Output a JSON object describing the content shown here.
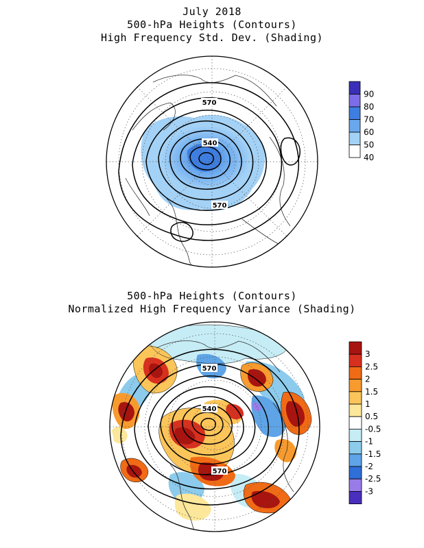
{
  "top_panel": {
    "title_lines": [
      "July 2018",
      "500-hPa Heights (Contours)",
      "High Frequency Std. Dev. (Shading)"
    ],
    "contour_labels": [
      "570",
      "540",
      "570"
    ],
    "legend": {
      "levels": [
        "90",
        "80",
        "70",
        "60",
        "50",
        "40"
      ],
      "colors": [
        "#3a2fb8",
        "#7d6de8",
        "#3e7ee0",
        "#6aa8ee",
        "#a4d2f6",
        "#ffffff"
      ]
    }
  },
  "bottom_panel": {
    "title_lines": [
      "500-hPa Heights (Contours)",
      "Normalized High Frequency Variance (Shading)"
    ],
    "contour_labels": [
      "570",
      "540",
      "570"
    ],
    "legend": {
      "levels": [
        "3",
        "2.5",
        "2",
        "1.5",
        "1",
        "0.5",
        "-0.5",
        "-1",
        "-1.5",
        "-2",
        "-2.5",
        "-3"
      ],
      "colors": [
        "#a8140f",
        "#d7301f",
        "#f06b15",
        "#f79b2e",
        "#fbc55a",
        "#fce79a",
        "#ffffff",
        "#c6ecf5",
        "#8ccbec",
        "#5ea4e6",
        "#2e6fd8",
        "#9a7ce8",
        "#4a2fbe"
      ]
    }
  }
}
